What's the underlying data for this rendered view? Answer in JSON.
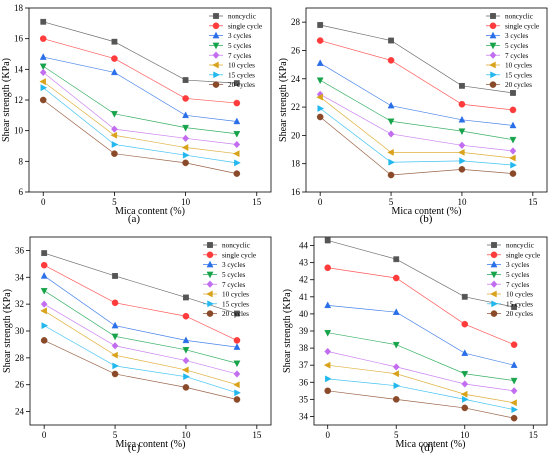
{
  "chart_data": [
    {
      "type": "line",
      "panel_label": "(a)",
      "xlabel": "Mica content  (%)",
      "ylabel": "Shear strength (KPa)",
      "xlim": [
        -1,
        16
      ],
      "ylim": [
        6,
        18
      ],
      "x_ticks": [
        0,
        5,
        10,
        15
      ],
      "y_ticks": [
        6,
        8,
        10,
        12,
        14,
        16,
        18
      ],
      "x": [
        0,
        5,
        10,
        13.6
      ],
      "legend_position": "top-right",
      "grid": false,
      "series": [
        {
          "name": "noncyclic",
          "values": [
            17.1,
            15.8,
            13.3,
            13.1
          ]
        },
        {
          "name": "single cycle",
          "values": [
            16.0,
            14.7,
            12.1,
            11.8
          ]
        },
        {
          "name": "3 cycles",
          "values": [
            14.8,
            13.8,
            11.0,
            10.6
          ]
        },
        {
          "name": "5 cycles",
          "values": [
            14.2,
            11.1,
            10.2,
            9.8
          ]
        },
        {
          "name": "7 cycles",
          "values": [
            13.8,
            10.1,
            9.5,
            9.1
          ]
        },
        {
          "name": "10 cycles",
          "values": [
            13.2,
            9.7,
            8.9,
            8.5
          ]
        },
        {
          "name": "15 cycles",
          "values": [
            12.8,
            9.1,
            8.4,
            7.9
          ]
        },
        {
          "name": "20 cycles",
          "values": [
            12.0,
            8.5,
            7.9,
            7.2
          ]
        }
      ]
    },
    {
      "type": "line",
      "panel_label": "(b)",
      "xlabel": "Mica content  (%)",
      "ylabel": "Shear strength (KPa)",
      "xlim": [
        -1,
        16
      ],
      "ylim": [
        16,
        29
      ],
      "x_ticks": [
        0,
        5,
        10,
        15
      ],
      "y_ticks": [
        16,
        18,
        20,
        22,
        24,
        26,
        28
      ],
      "x": [
        0,
        5,
        10,
        13.6
      ],
      "legend_position": "top-right",
      "grid": false,
      "series": [
        {
          "name": "noncyclic",
          "values": [
            27.8,
            26.7,
            23.5,
            23.0
          ]
        },
        {
          "name": "single cycle",
          "values": [
            26.7,
            25.3,
            22.2,
            21.8
          ]
        },
        {
          "name": "3 cycles",
          "values": [
            25.1,
            22.1,
            21.1,
            20.7
          ]
        },
        {
          "name": "5 cycles",
          "values": [
            23.9,
            21.0,
            20.3,
            19.7
          ]
        },
        {
          "name": "7 cycles",
          "values": [
            22.9,
            20.1,
            19.3,
            18.9
          ]
        },
        {
          "name": "10 cycles",
          "values": [
            22.7,
            18.8,
            18.8,
            18.4
          ]
        },
        {
          "name": "15 cycles",
          "values": [
            21.9,
            18.1,
            18.2,
            17.9
          ]
        },
        {
          "name": "20 cycles",
          "values": [
            21.3,
            17.2,
            17.6,
            17.3
          ]
        }
      ]
    },
    {
      "type": "line",
      "panel_label": "(c)",
      "xlabel": "Mica content  (%)",
      "ylabel": "Shear strength (KPa)",
      "xlim": [
        -1,
        16
      ],
      "ylim": [
        23,
        37
      ],
      "x_ticks": [
        0,
        5,
        10,
        15
      ],
      "y_ticks": [
        24,
        26,
        28,
        30,
        32,
        34,
        36
      ],
      "x": [
        0,
        5,
        10,
        13.6
      ],
      "legend_position": "top-right",
      "grid": false,
      "series": [
        {
          "name": "noncyclic",
          "values": [
            35.8,
            34.1,
            32.5,
            31.3
          ]
        },
        {
          "name": "single cycle",
          "values": [
            34.9,
            32.1,
            31.1,
            29.3
          ]
        },
        {
          "name": "3 cycles",
          "values": [
            34.1,
            30.4,
            29.3,
            28.8
          ]
        },
        {
          "name": "5 cycles",
          "values": [
            33.0,
            29.6,
            28.6,
            27.6
          ]
        },
        {
          "name": "7 cycles",
          "values": [
            32.0,
            28.9,
            27.8,
            26.8
          ]
        },
        {
          "name": "10 cycles",
          "values": [
            31.5,
            28.2,
            27.1,
            26.0
          ]
        },
        {
          "name": "15 cycles",
          "values": [
            30.4,
            27.4,
            26.6,
            25.4
          ]
        },
        {
          "name": "20 cycles",
          "values": [
            29.3,
            26.8,
            25.8,
            24.9
          ]
        }
      ]
    },
    {
      "type": "line",
      "panel_label": "(d)",
      "xlabel": "Mica content  (%)",
      "ylabel": "Shear strength (KPa)",
      "xlim": [
        -1,
        16
      ],
      "ylim": [
        33.5,
        44.5
      ],
      "x_ticks": [
        0,
        5,
        10,
        15
      ],
      "y_ticks": [
        34,
        35,
        36,
        37,
        38,
        39,
        40,
        41,
        42,
        43,
        44
      ],
      "x": [
        0,
        5,
        10,
        13.6
      ],
      "legend_position": "top-right",
      "grid": false,
      "series": [
        {
          "name": "noncyclic",
          "values": [
            44.3,
            43.2,
            41.0,
            40.4
          ]
        },
        {
          "name": "single cycle",
          "values": [
            42.7,
            42.1,
            39.4,
            38.2
          ]
        },
        {
          "name": "3 cycles",
          "values": [
            40.5,
            40.1,
            37.7,
            37.0
          ]
        },
        {
          "name": "5 cycles",
          "values": [
            38.9,
            38.2,
            36.5,
            36.1
          ]
        },
        {
          "name": "7 cycles",
          "values": [
            37.8,
            36.9,
            35.9,
            35.5
          ]
        },
        {
          "name": "10 cycles",
          "values": [
            37.0,
            36.5,
            35.3,
            34.8
          ]
        },
        {
          "name": "15 cycles",
          "values": [
            36.2,
            35.8,
            35.0,
            34.4
          ]
        },
        {
          "name": "20 cycles",
          "values": [
            35.5,
            35.0,
            34.5,
            33.9
          ]
        }
      ]
    }
  ],
  "series_styles": [
    {
      "color": "#555555",
      "marker": "square"
    },
    {
      "color": "#ff3b3b",
      "marker": "circle"
    },
    {
      "color": "#2a6ee8",
      "marker": "triangle-up"
    },
    {
      "color": "#16a34a",
      "marker": "triangle-down"
    },
    {
      "color": "#c26cf0",
      "marker": "diamond"
    },
    {
      "color": "#d9a21b",
      "marker": "triangle-left"
    },
    {
      "color": "#22b8ee",
      "marker": "triangle-right"
    },
    {
      "color": "#8a4a2a",
      "marker": "circle"
    }
  ]
}
